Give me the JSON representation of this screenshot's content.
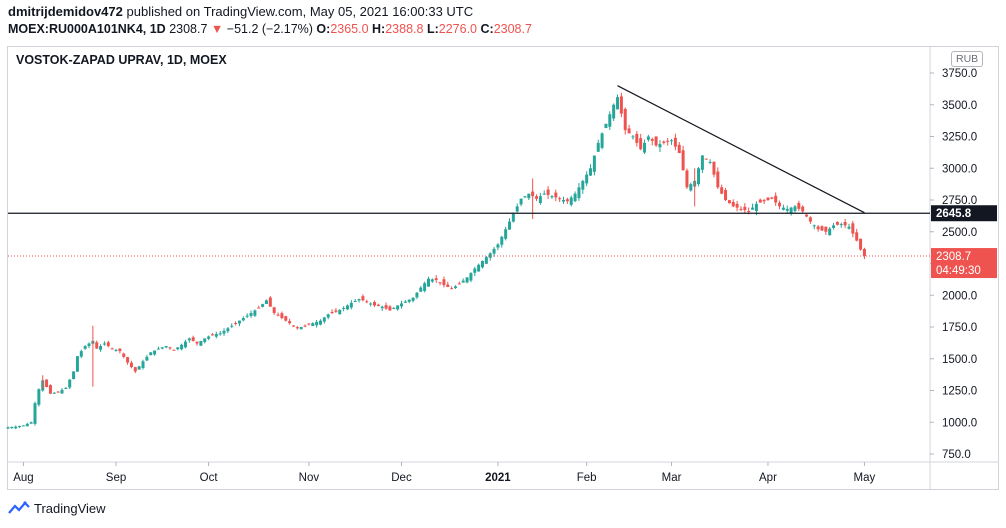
{
  "header": {
    "author": "dmitrijdemidov472",
    "published_text": "published on TradingView.com, May 05, 2021 16:00:33 UTC",
    "symbol": "MOEX:RU000A101NK4, 1D",
    "last": "2308.7",
    "change_arrow": "▼",
    "change": "−51.2 (−2.17%)",
    "o_label": "O:",
    "o_value": "2365.0",
    "h_label": "H:",
    "h_value": "2388.8",
    "l_label": "L:",
    "l_value": "2276.0",
    "c_label": "C:",
    "c_value": "2308.7"
  },
  "chart_title": "VOSTOK-ZAPAD UPRAV, 1D, MOEX",
  "currency": "RUB",
  "footer": {
    "brand": "TradingView"
  },
  "colors": {
    "up": "#26a69a",
    "down": "#ef5350",
    "line": "#131722",
    "price_line": "#ef5350"
  },
  "chart_data": {
    "type": "candlestick",
    "title": "VOSTOK-ZAPAD UPRAV, 1D, MOEX",
    "ylim": [
      650,
      3850
    ],
    "y_ticks": [
      750,
      1000,
      1250,
      1500,
      1750,
      2000,
      2250,
      2500,
      2750,
      3000,
      3250,
      3500,
      3750
    ],
    "y_tick_labels": [
      "750.0",
      "1000.0",
      "1250.0",
      "1500.0",
      "1750.0",
      "2000.0",
      "2250.0",
      "2500.0",
      "2750.0",
      "3000.0",
      "3250.0",
      "3500.0",
      "3750.0"
    ],
    "x_range": [
      0,
      239
    ],
    "x_ticks": [
      {
        "label": "Aug",
        "x": 4
      },
      {
        "label": "Sep",
        "x": 28
      },
      {
        "label": "Oct",
        "x": 52
      },
      {
        "label": "Nov",
        "x": 78
      },
      {
        "label": "Dec",
        "x": 102
      },
      {
        "label": "2021",
        "x": 127
      },
      {
        "label": "Feb",
        "x": 150
      },
      {
        "label": "Mar",
        "x": 172
      },
      {
        "label": "Apr",
        "x": 197
      },
      {
        "label": "May",
        "x": 222
      }
    ],
    "close_path": [
      [
        0,
        960
      ],
      [
        2,
        965
      ],
      [
        4,
        975
      ],
      [
        6,
        1000
      ],
      [
        7,
        1150
      ],
      [
        8,
        1260
      ],
      [
        9,
        1330
      ],
      [
        11,
        1225
      ],
      [
        13,
        1240
      ],
      [
        15,
        1270
      ],
      [
        17,
        1400
      ],
      [
        18,
        1520
      ],
      [
        20,
        1600
      ],
      [
        22,
        1640
      ],
      [
        23,
        1580
      ],
      [
        25,
        1620
      ],
      [
        27,
        1580
      ],
      [
        29,
        1560
      ],
      [
        31,
        1470
      ],
      [
        33,
        1400
      ],
      [
        35,
        1480
      ],
      [
        37,
        1550
      ],
      [
        39,
        1580
      ],
      [
        41,
        1600
      ],
      [
        43,
        1570
      ],
      [
        45,
        1610
      ],
      [
        47,
        1660
      ],
      [
        49,
        1620
      ],
      [
        51,
        1660
      ],
      [
        53,
        1690
      ],
      [
        55,
        1700
      ],
      [
        57,
        1740
      ],
      [
        59,
        1780
      ],
      [
        61,
        1820
      ],
      [
        63,
        1860
      ],
      [
        65,
        1900
      ],
      [
        67,
        1960
      ],
      [
        69,
        1860
      ],
      [
        71,
        1820
      ],
      [
        73,
        1780
      ],
      [
        75,
        1740
      ],
      [
        77,
        1760
      ],
      [
        79,
        1780
      ],
      [
        81,
        1800
      ],
      [
        83,
        1850
      ],
      [
        85,
        1870
      ],
      [
        87,
        1900
      ],
      [
        89,
        1940
      ],
      [
        91,
        1970
      ],
      [
        93,
        1950
      ],
      [
        95,
        1920
      ],
      [
        97,
        1910
      ],
      [
        99,
        1880
      ],
      [
        101,
        1920
      ],
      [
        103,
        1950
      ],
      [
        105,
        1980
      ],
      [
        107,
        2060
      ],
      [
        109,
        2130
      ],
      [
        111,
        2120
      ],
      [
        113,
        2080
      ],
      [
        115,
        2050
      ],
      [
        117,
        2090
      ],
      [
        119,
        2140
      ],
      [
        121,
        2210
      ],
      [
        123,
        2270
      ],
      [
        125,
        2330
      ],
      [
        127,
        2400
      ],
      [
        129,
        2520
      ],
      [
        131,
        2640
      ],
      [
        133,
        2760
      ],
      [
        135,
        2800
      ],
      [
        137,
        2760
      ],
      [
        139,
        2800
      ],
      [
        141,
        2780
      ],
      [
        143,
        2760
      ],
      [
        145,
        2740
      ],
      [
        147,
        2800
      ],
      [
        149,
        2900
      ],
      [
        151,
        3000
      ],
      [
        153,
        3200
      ],
      [
        155,
        3350
      ],
      [
        157,
        3500
      ],
      [
        158,
        3560
      ],
      [
        160,
        3300
      ],
      [
        162,
        3250
      ],
      [
        164,
        3150
      ],
      [
        166,
        3250
      ],
      [
        168,
        3180
      ],
      [
        170,
        3200
      ],
      [
        172,
        3220
      ],
      [
        174,
        3120
      ],
      [
        176,
        2850
      ],
      [
        178,
        2900
      ],
      [
        180,
        3100
      ],
      [
        182,
        3050
      ],
      [
        184,
        2850
      ],
      [
        186,
        2750
      ],
      [
        188,
        2700
      ],
      [
        190,
        2680
      ],
      [
        192,
        2660
      ],
      [
        194,
        2720
      ],
      [
        196,
        2740
      ],
      [
        198,
        2760
      ],
      [
        200,
        2700
      ],
      [
        202,
        2680
      ],
      [
        204,
        2700
      ],
      [
        206,
        2660
      ],
      [
        208,
        2580
      ],
      [
        210,
        2520
      ],
      [
        212,
        2500
      ],
      [
        214,
        2550
      ],
      [
        216,
        2560
      ],
      [
        218,
        2540
      ],
      [
        220,
        2430
      ],
      [
        221,
        2360
      ],
      [
        222,
        2308.7
      ]
    ],
    "spikes": [
      {
        "x": 22,
        "low": 1280,
        "high": 1760
      },
      {
        "x": 9,
        "low": 1260,
        "high": 1370
      },
      {
        "x": 178,
        "low": 2700,
        "high": 3000
      },
      {
        "x": 136,
        "low": 2600,
        "high": 2920
      }
    ],
    "horizontal_line": {
      "price": 2645.8,
      "label": "2645.8"
    },
    "trend_line": {
      "from": {
        "x": 158,
        "price": 3650
      },
      "to": {
        "x": 222,
        "price": 2650
      }
    },
    "last_price": {
      "price": 2308.7,
      "label": "2308.7",
      "countdown": "04:49:30"
    }
  }
}
